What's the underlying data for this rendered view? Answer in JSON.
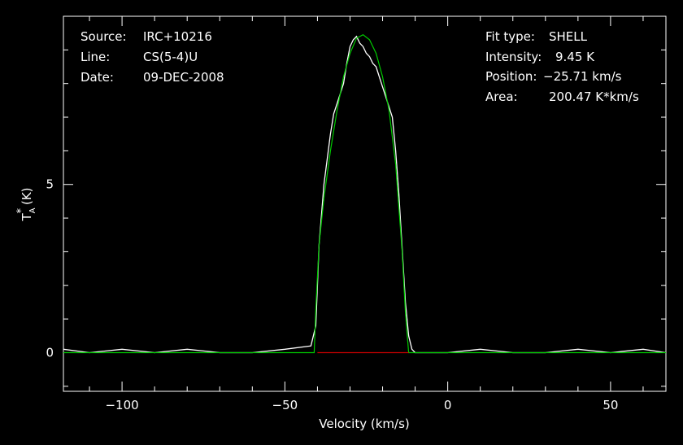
{
  "header": {
    "left": [
      {
        "key": "Source:",
        "value": "IRC+10216"
      },
      {
        "key": "Line:",
        "value": "CS(5-4)U"
      },
      {
        "key": "Date:",
        "value": "09-DEC-2008"
      }
    ],
    "right": [
      {
        "key": "Fit type:",
        "value": "SHELL"
      },
      {
        "key": "Intensity:",
        "value": "9.45 K"
      },
      {
        "key": "Position:",
        "value": "−25.71 km/s"
      },
      {
        "key": "Area:",
        "value": "200.47 K*km/s"
      }
    ]
  },
  "chart_data": {
    "type": "line",
    "title": "",
    "xlabel": "Velocity (km/s)",
    "ylabel": "T*A (K)",
    "xlim": [
      -118,
      67
    ],
    "ylim": [
      -1.15,
      10.0
    ],
    "x_ticks": [
      -100,
      -50,
      0,
      50
    ],
    "x_tick_labels": [
      "−100",
      "−50",
      "0",
      "50"
    ],
    "y_ticks": [
      0,
      5
    ],
    "y_tick_labels": [
      "0",
      "5"
    ],
    "colors": {
      "observed": "#ffffff",
      "fit": "#00cc00",
      "baseline": "#cc0000",
      "axes": "#ffffff",
      "background": "#000000"
    },
    "series": [
      {
        "role": "observed",
        "points": [
          [
            -118,
            0.1
          ],
          [
            -110,
            0.0
          ],
          [
            -100,
            0.1
          ],
          [
            -90,
            0.0
          ],
          [
            -80,
            0.1
          ],
          [
            -70,
            0.0
          ],
          [
            -60,
            0.0
          ],
          [
            -50,
            0.1
          ],
          [
            -42,
            0.2
          ],
          [
            -40.5,
            0.8
          ],
          [
            -39.5,
            3.2
          ],
          [
            -38,
            5.0
          ],
          [
            -36,
            6.5
          ],
          [
            -35,
            7.1
          ],
          [
            -34,
            7.4
          ],
          [
            -32,
            8.0
          ],
          [
            -31,
            8.6
          ],
          [
            -30,
            9.1
          ],
          [
            -29,
            9.3
          ],
          [
            -28,
            9.4
          ],
          [
            -27,
            9.2
          ],
          [
            -26,
            9.1
          ],
          [
            -25,
            8.9
          ],
          [
            -24,
            8.8
          ],
          [
            -23,
            8.6
          ],
          [
            -22,
            8.5
          ],
          [
            -21,
            8.2
          ],
          [
            -20,
            7.9
          ],
          [
            -19,
            7.6
          ],
          [
            -18,
            7.3
          ],
          [
            -17,
            7.0
          ],
          [
            -16,
            6.0
          ],
          [
            -15,
            4.7
          ],
          [
            -14,
            3.1
          ],
          [
            -13,
            1.5
          ],
          [
            -12,
            0.5
          ],
          [
            -11,
            0.1
          ],
          [
            -10,
            0.0
          ],
          [
            0,
            0.0
          ],
          [
            10,
            0.1
          ],
          [
            20,
            0.0
          ],
          [
            30,
            0.0
          ],
          [
            40,
            0.1
          ],
          [
            50,
            0.0
          ],
          [
            60,
            0.1
          ],
          [
            67,
            0.0
          ]
        ]
      },
      {
        "role": "fit",
        "points": [
          [
            -118,
            0.0
          ],
          [
            -41,
            0.0
          ],
          [
            -40.5,
            1.3
          ],
          [
            -39.5,
            3.2
          ],
          [
            -38,
            4.6
          ],
          [
            -36,
            6.0
          ],
          [
            -34,
            7.2
          ],
          [
            -32,
            8.2
          ],
          [
            -30,
            8.9
          ],
          [
            -28,
            9.35
          ],
          [
            -26,
            9.45
          ],
          [
            -24,
            9.3
          ],
          [
            -22,
            8.9
          ],
          [
            -20,
            8.2
          ],
          [
            -18,
            7.2
          ],
          [
            -16,
            5.6
          ],
          [
            -14,
            3.0
          ],
          [
            -13,
            1.2
          ],
          [
            -12,
            0.0
          ],
          [
            67,
            0.0
          ]
        ]
      },
      {
        "role": "baseline",
        "points": [
          [
            -40,
            0.0
          ],
          [
            -12,
            0.0
          ]
        ]
      }
    ]
  }
}
